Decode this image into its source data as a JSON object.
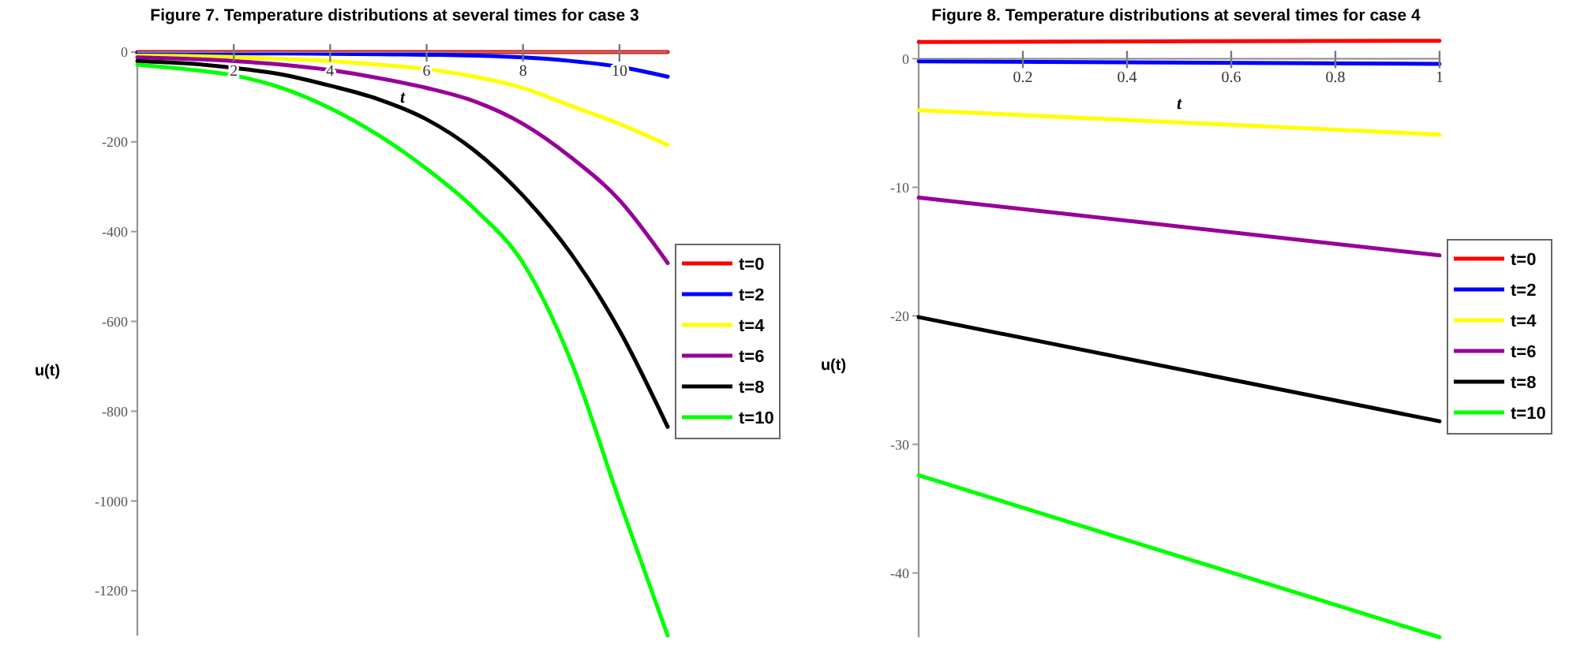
{
  "chart_data": [
    {
      "type": "line",
      "title": "Figure 7. Temperature distributions at several times for case 3",
      "xlabel": "t",
      "ylabel": "u(t)",
      "x": [
        0,
        1,
        2,
        3,
        4,
        5,
        6,
        7,
        8,
        9,
        10,
        11
      ],
      "xlim": [
        0,
        11
      ],
      "xticks": [
        2,
        4,
        6,
        8,
        10
      ],
      "ylim": [
        -1300,
        0
      ],
      "yticks": [
        0,
        -200,
        -400,
        -600,
        -800,
        -1000,
        -1200
      ],
      "legend": "right",
      "grid": false,
      "series": [
        {
          "name": "t=0",
          "color": "#ff0000",
          "values": [
            0,
            0,
            0,
            0,
            0,
            0,
            0,
            0,
            0,
            0,
            0,
            0
          ]
        },
        {
          "name": "t=2",
          "color": "#0000ff",
          "values": [
            -2,
            -2,
            -3,
            -3,
            -4,
            -5,
            -6,
            -8,
            -12,
            -20,
            -33,
            -55
          ]
        },
        {
          "name": "t=4",
          "color": "#ffff00",
          "values": [
            -8,
            -9,
            -11,
            -15,
            -20,
            -28,
            -38,
            -55,
            -80,
            -120,
            -160,
            -207
          ]
        },
        {
          "name": "t=6",
          "color": "#990099",
          "values": [
            -12,
            -15,
            -20,
            -28,
            -40,
            -58,
            -80,
            -110,
            -160,
            -235,
            -330,
            -470
          ]
        },
        {
          "name": "t=8",
          "color": "#000000",
          "values": [
            -20,
            -25,
            -35,
            -50,
            -75,
            -105,
            -150,
            -220,
            -320,
            -450,
            -620,
            -835
          ]
        },
        {
          "name": "t=10",
          "color": "#00ff00",
          "values": [
            -28,
            -38,
            -52,
            -80,
            -125,
            -185,
            -260,
            -350,
            -470,
            -690,
            -1000,
            -1300
          ]
        }
      ]
    },
    {
      "type": "line",
      "title": "Figure 8. Temperature distributions at several times for case 4",
      "xlabel": "t",
      "ylabel": "u(t)",
      "x": [
        0,
        1
      ],
      "xlim": [
        0,
        1
      ],
      "xticks": [
        0.2,
        0.4,
        0.6,
        0.8,
        1
      ],
      "ylim": [
        -45,
        1.5
      ],
      "yticks": [
        0,
        -10,
        -20,
        -30,
        -40
      ],
      "legend": "right",
      "grid": false,
      "series": [
        {
          "name": "t=0",
          "color": "#ff0000",
          "values": [
            1.3,
            1.4
          ]
        },
        {
          "name": "t=2",
          "color": "#0000ff",
          "values": [
            -0.2,
            -0.4
          ]
        },
        {
          "name": "t=4",
          "color": "#ffff00",
          "values": [
            -4.0,
            -5.9
          ]
        },
        {
          "name": "t=6",
          "color": "#990099",
          "values": [
            -10.8,
            -15.3
          ]
        },
        {
          "name": "t=8",
          "color": "#000000",
          "values": [
            -20.1,
            -28.2
          ]
        },
        {
          "name": "t=10",
          "color": "#00ff00",
          "values": [
            -32.4,
            -45
          ]
        }
      ]
    }
  ]
}
